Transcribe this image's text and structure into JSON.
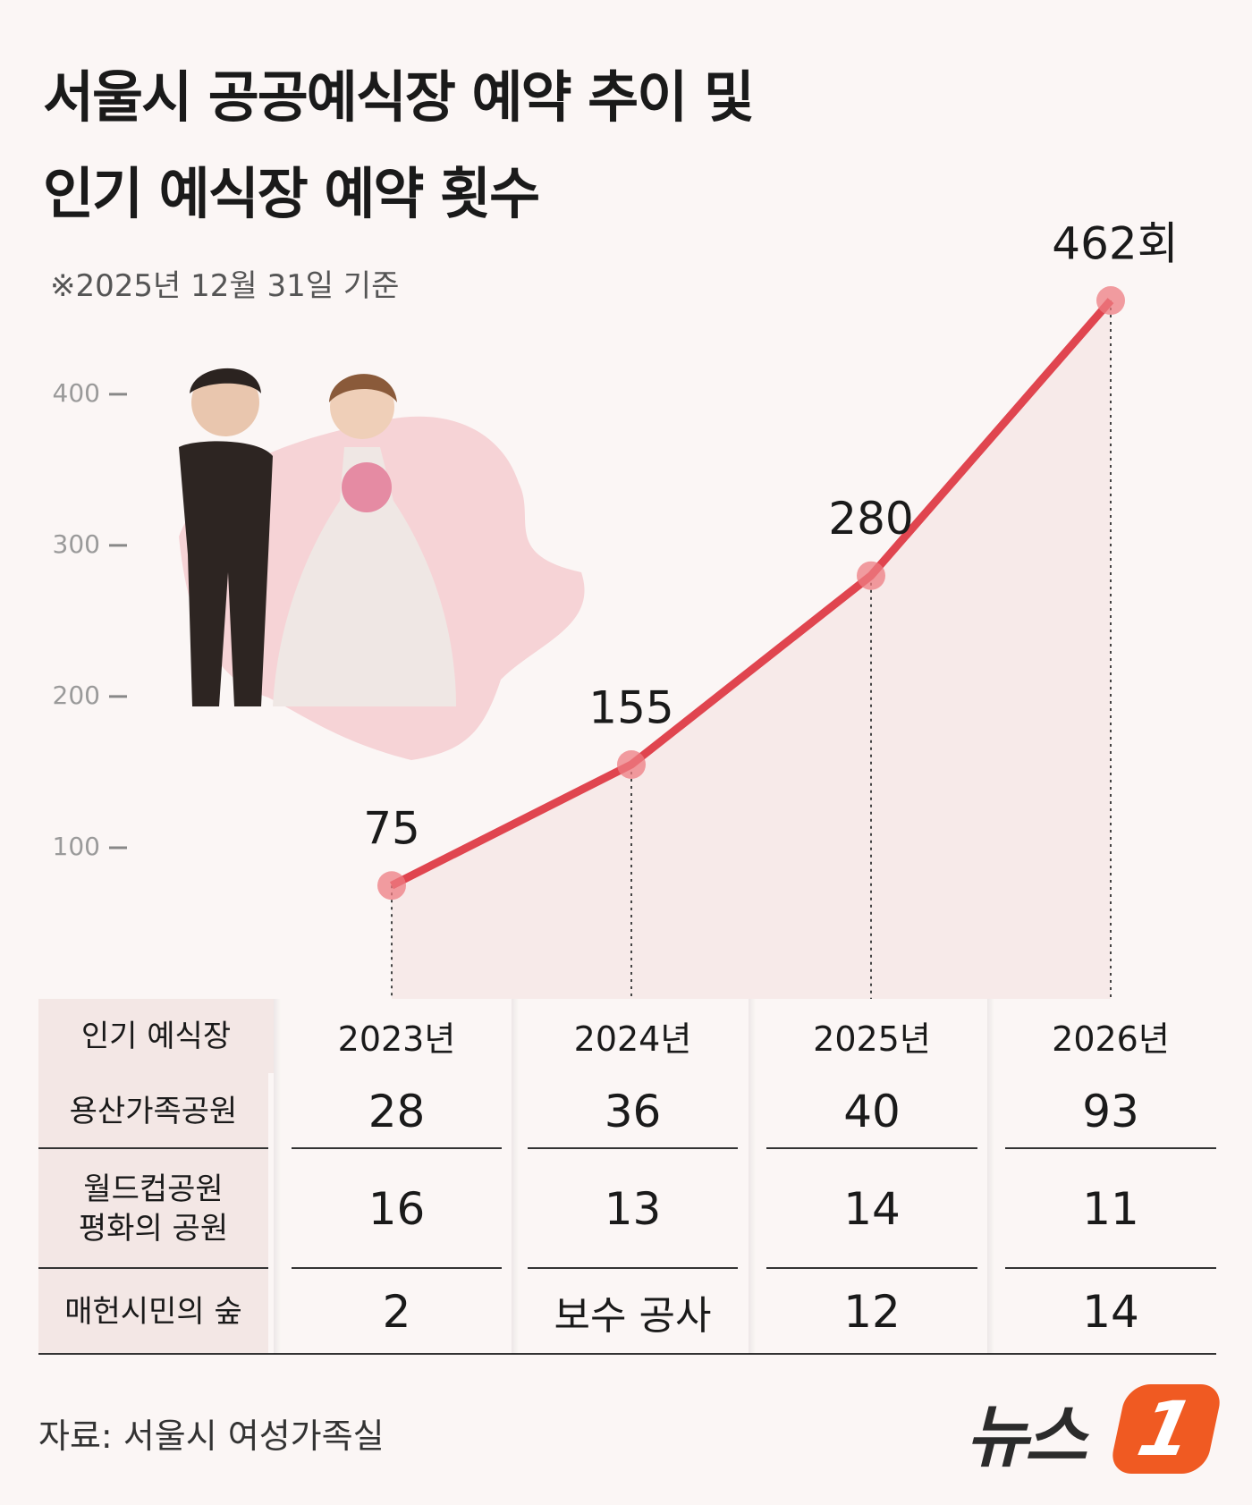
{
  "title": "서울시 공공예식장 예약 추이 및\n인기 예식장 예약 횟수",
  "subtitle": "※2025년 12월 31일 기준",
  "chart_data": {
    "type": "line",
    "categories": [
      null,
      null,
      null,
      null
    ],
    "values": [
      75,
      155,
      280,
      462
    ],
    "value_labels": [
      "75",
      "155",
      "280",
      "462회"
    ],
    "color": "#e0454f",
    "ylim": [
      0,
      520
    ],
    "yticks": [
      100,
      200,
      300,
      400
    ]
  },
  "table": {
    "header": [
      "인기 예식장",
      "2023년",
      "2024년",
      "2025년",
      "2026년"
    ],
    "rows": [
      [
        "용산가족공원",
        28,
        36,
        40,
        93
      ],
      [
        "월드컵공원\n평화의 공원",
        16,
        13,
        14,
        11
      ],
      [
        "매헌시민의 숲",
        2,
        "보수 공사",
        12,
        14
      ]
    ]
  },
  "source": "자료: 서울시 여성가족실",
  "logo": {
    "text": "뉴스",
    "badge": "1"
  }
}
